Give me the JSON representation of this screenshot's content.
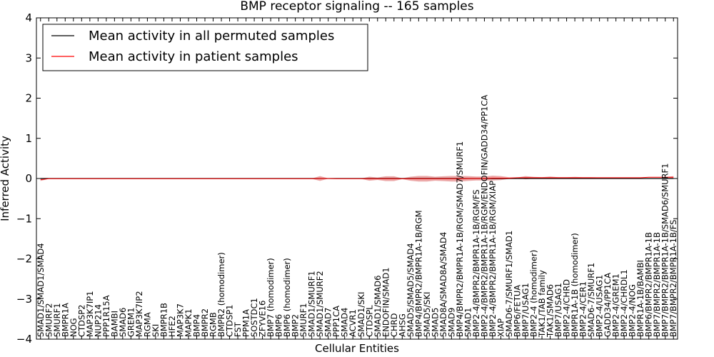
{
  "chart_data": {
    "type": "line",
    "title": "BMP receptor signaling -- 165 samples",
    "xlabel": "Cellular Entities",
    "ylabel": "Inferred Activity",
    "ylim": [
      -4,
      4
    ],
    "yticks": [
      -4,
      -3,
      -2,
      -1,
      0,
      1,
      2,
      3,
      4
    ],
    "grid": false,
    "legend_position": "top-left",
    "categories": [
      "SMAD1/SMAD1/SMAD4",
      "SMURF2",
      "SMURF1",
      "BMPR1A",
      "NOG",
      "CTDSP2",
      "MAP3K7IP1",
      "NUP214",
      "PPP1R15A",
      "BAMBI",
      "SMAD6",
      "GREM1",
      "MAP3K7IP2",
      "RGMA",
      "SKI",
      "BMPR1B",
      "HFE2",
      "MAP3K7",
      "MAPK1",
      "BMP4",
      "BMPR2",
      "RGMB",
      "BMPR2 (homodimer)",
      "CTDSP1",
      "FST",
      "PPM1A",
      "SOSTDC1",
      "ZFYVE16",
      "BMP7 (homodimer)",
      "BMP6",
      "BMP6 (homodimer)",
      "BMP2",
      "SMURF1",
      "SMAD1/SMURF1",
      "SMAD1/SMURF2",
      "SMAD7",
      "PPP1CA",
      "SMAD4",
      "ACVR1",
      "SMAD1/SKI",
      "CTDSPL",
      "SMAD1/SMAD6",
      "ENDOFIN/SMAD1",
      "CHRD",
      "AHSG",
      "SMAD5/SMAD5/SMAD4",
      "BMP4/BMPR2/BMPR1A-1B/RGM",
      "SMAD5/SKI",
      "SMAD5",
      "SMAD8A/SMAD8A/SMAD4",
      "SMAD9",
      "BMP4/BMPR2/BMPR1A-1B/RGM/SMAD7/SMURF1",
      "SMAD1",
      "BMP2-4/BMPR2/BMPR1A-1B/RGM/FS",
      "BMP2-4/BMPR2/BMPR1A-1B/RGM/ENDOFIN/GADD34/PP1CA",
      "BMP2-4/BMPR2/BMPR1A-1B/RGM/XIAP",
      "XIAP",
      "SMAD6-7/SMURF1/SMAD1",
      "BMP6/FETUA",
      "BMP7/USAG1",
      "BMP2-4 (homodimer)",
      "TAK1/TAB family",
      "TAK1/SMAD6",
      "BMP7/USAG1",
      "BMP2-4/CHRD",
      "BMPR1A-1B (homodimer)",
      "BMP2-4/CER1",
      "SMAD6-7/SMURF1",
      "BMP2-4/USAG1",
      "GADD34/PP1CA",
      "BMP2-4/GREM1",
      "BMP2-4/CHRDL1",
      "BMP2-4/NOG",
      "BMPR1A-1B/BAMBI",
      "BMP6/BMPR2/BMPR1A-1B",
      "BMP7/BMPR2/BMPR1A-1B",
      "BMP7/BMPR2/BMPR1A-1B/SMAD6/SMURF1",
      "BMP7/BMPR2/BMPR1A-1B/FS"
    ],
    "series": [
      {
        "name": "Mean activity in all permuted samples",
        "color": "#000000",
        "values": [
          0,
          0,
          0,
          0,
          0,
          0,
          0,
          0,
          0,
          0,
          0,
          0,
          0,
          0,
          0,
          0,
          0,
          0,
          0,
          0,
          0,
          0,
          0,
          0,
          0,
          0,
          0,
          0,
          0,
          0,
          0,
          0,
          0,
          0,
          0,
          0,
          0,
          0,
          0,
          0,
          0,
          0,
          0,
          0,
          0,
          0,
          0,
          0,
          0,
          0,
          0,
          0,
          0,
          0,
          0,
          0,
          0,
          0,
          0,
          0,
          0,
          0,
          0,
          0,
          0,
          0,
          0,
          0,
          0,
          0,
          0,
          0,
          0,
          0,
          0,
          0,
          0,
          0
        ]
      },
      {
        "name": "Mean activity in patient samples",
        "color": "#ff0000",
        "values": [
          -0.03,
          -0.005,
          -0.005,
          -0.005,
          -0.005,
          -0.005,
          -0.005,
          -0.005,
          -0.005,
          -0.005,
          -0.005,
          -0.005,
          -0.005,
          -0.005,
          -0.005,
          -0.005,
          -0.005,
          -0.005,
          -0.005,
          -0.005,
          -0.005,
          -0.005,
          -0.005,
          -0.005,
          -0.005,
          -0.005,
          -0.005,
          -0.005,
          -0.005,
          -0.005,
          -0.005,
          -0.005,
          -0.005,
          -0.005,
          0,
          0,
          -0.005,
          -0.005,
          -0.005,
          -0.005,
          -0.005,
          -0.005,
          -0.005,
          -0.005,
          -0.005,
          -0.005,
          -0.005,
          -0.005,
          -0.005,
          -0.005,
          -0.005,
          -0.005,
          0,
          0,
          0,
          0.01,
          0.01,
          0.01,
          0.02,
          0.02,
          0.02,
          0.02,
          0.02,
          0.02,
          0.02,
          0.02,
          0.02,
          0.02,
          0.02,
          0.02,
          0.02,
          0.02,
          0.02,
          0.02,
          0.03,
          0.03,
          0.03,
          0.03
        ]
      }
    ],
    "band": {
      "color": "#e07070",
      "halfwidths": [
        0.03,
        0.005,
        0.005,
        0.005,
        0.005,
        0.005,
        0.005,
        0.005,
        0.005,
        0.005,
        0.005,
        0.005,
        0.005,
        0.005,
        0.005,
        0.005,
        0.005,
        0.005,
        0.005,
        0.005,
        0.005,
        0.005,
        0.005,
        0.005,
        0.005,
        0.005,
        0.005,
        0.005,
        0.005,
        0.005,
        0.005,
        0.005,
        0.005,
        0.005,
        0.06,
        0.005,
        0.005,
        0.005,
        0.005,
        0.005,
        0.05,
        0.03,
        0.06,
        0.06,
        0.01,
        0.05,
        0.07,
        0.07,
        0.05,
        0.06,
        0.07,
        0.07,
        0.06,
        0.05,
        0.05,
        0.06,
        0.05,
        0.02,
        0.005,
        0.04,
        0.02,
        0.01,
        0.03,
        0.01,
        0.01,
        0.02,
        0.01,
        0.01,
        0.005,
        0.005,
        0.005,
        0.005,
        0.005,
        0.005,
        0.005,
        0.005,
        0.005,
        0.03
      ]
    }
  }
}
